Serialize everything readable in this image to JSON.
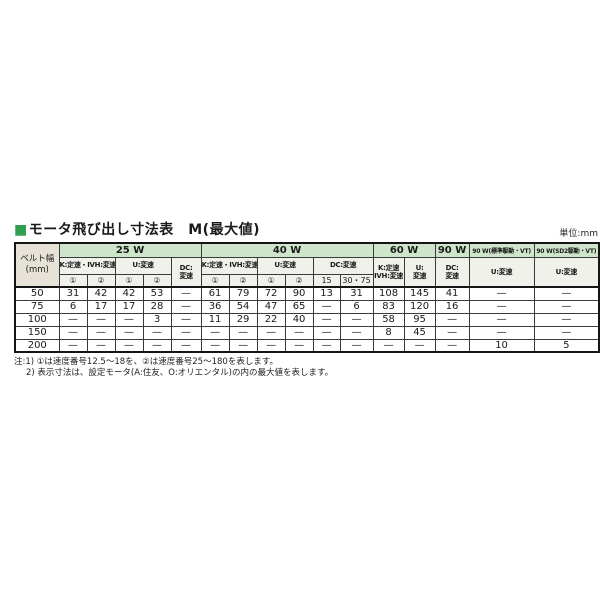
{
  "page": {
    "title": "モータ飛び出し寸法表　M(最大値)",
    "title_bullet": "■",
    "unit_label": "単位:mm"
  },
  "colors": {
    "accent_green": "#2f9e4e",
    "group_header_bg": "#cfe5cb",
    "subheader_bg": "#f1f1ec",
    "corner_bg": "#e6e2d7"
  },
  "table": {
    "corner": {
      "line1": "ベルト幅",
      "line2": "(mm)"
    },
    "groups": [
      {
        "label": "25 W",
        "span": 5
      },
      {
        "label": "40 W",
        "span": 6
      },
      {
        "label": "60 W",
        "span": 2
      },
      {
        "label": "90 W",
        "span": 1
      },
      {
        "label": "90 W(標準駆動・VT)",
        "span": 1
      },
      {
        "label": "90 W(SD2駆動・VT)",
        "span": 1
      }
    ],
    "subheaders": {
      "k_ivh": "K:定速・IVH:変速",
      "u": "U:変速",
      "dc": "DC:変速",
      "dc_line1": "DC:",
      "dc_line2": "変速",
      "k_line1": "K:定速",
      "k_line2": "IVH:変速",
      "u_line1": "U:",
      "u_line2": "変速"
    },
    "speed_cols": [
      "①",
      "②",
      "①",
      "②",
      "①",
      "②",
      "①",
      "②",
      "15",
      "30・75"
    ],
    "rows": [
      {
        "belt": "50",
        "values": [
          "31",
          "42",
          "42",
          "53",
          "—",
          "61",
          "79",
          "72",
          "90",
          "13",
          "31",
          "108",
          "145",
          "41",
          "—",
          "—"
        ]
      },
      {
        "belt": "75",
        "values": [
          "6",
          "17",
          "17",
          "28",
          "—",
          "36",
          "54",
          "47",
          "65",
          "—",
          "6",
          "83",
          "120",
          "16",
          "—",
          "—"
        ]
      },
      {
        "belt": "100",
        "values": [
          "—",
          "—",
          "—",
          "3",
          "—",
          "11",
          "29",
          "22",
          "40",
          "—",
          "—",
          "58",
          "95",
          "—",
          "—",
          "—"
        ]
      },
      {
        "belt": "150",
        "values": [
          "—",
          "—",
          "—",
          "—",
          "—",
          "—",
          "—",
          "—",
          "—",
          "—",
          "—",
          "8",
          "45",
          "—",
          "—",
          "—"
        ]
      },
      {
        "belt": "200",
        "values": [
          "—",
          "—",
          "—",
          "—",
          "—",
          "—",
          "—",
          "—",
          "—",
          "—",
          "—",
          "—",
          "—",
          "—",
          "10",
          "5"
        ]
      }
    ]
  },
  "notes": {
    "line1": "注:1) ①は速度番号12.5～18を、②は速度番号25～180を表します。",
    "line2": "2) 表示寸法は、設定モータ(A:住友、O:オリエンタル)の内の最大値を表します。"
  }
}
